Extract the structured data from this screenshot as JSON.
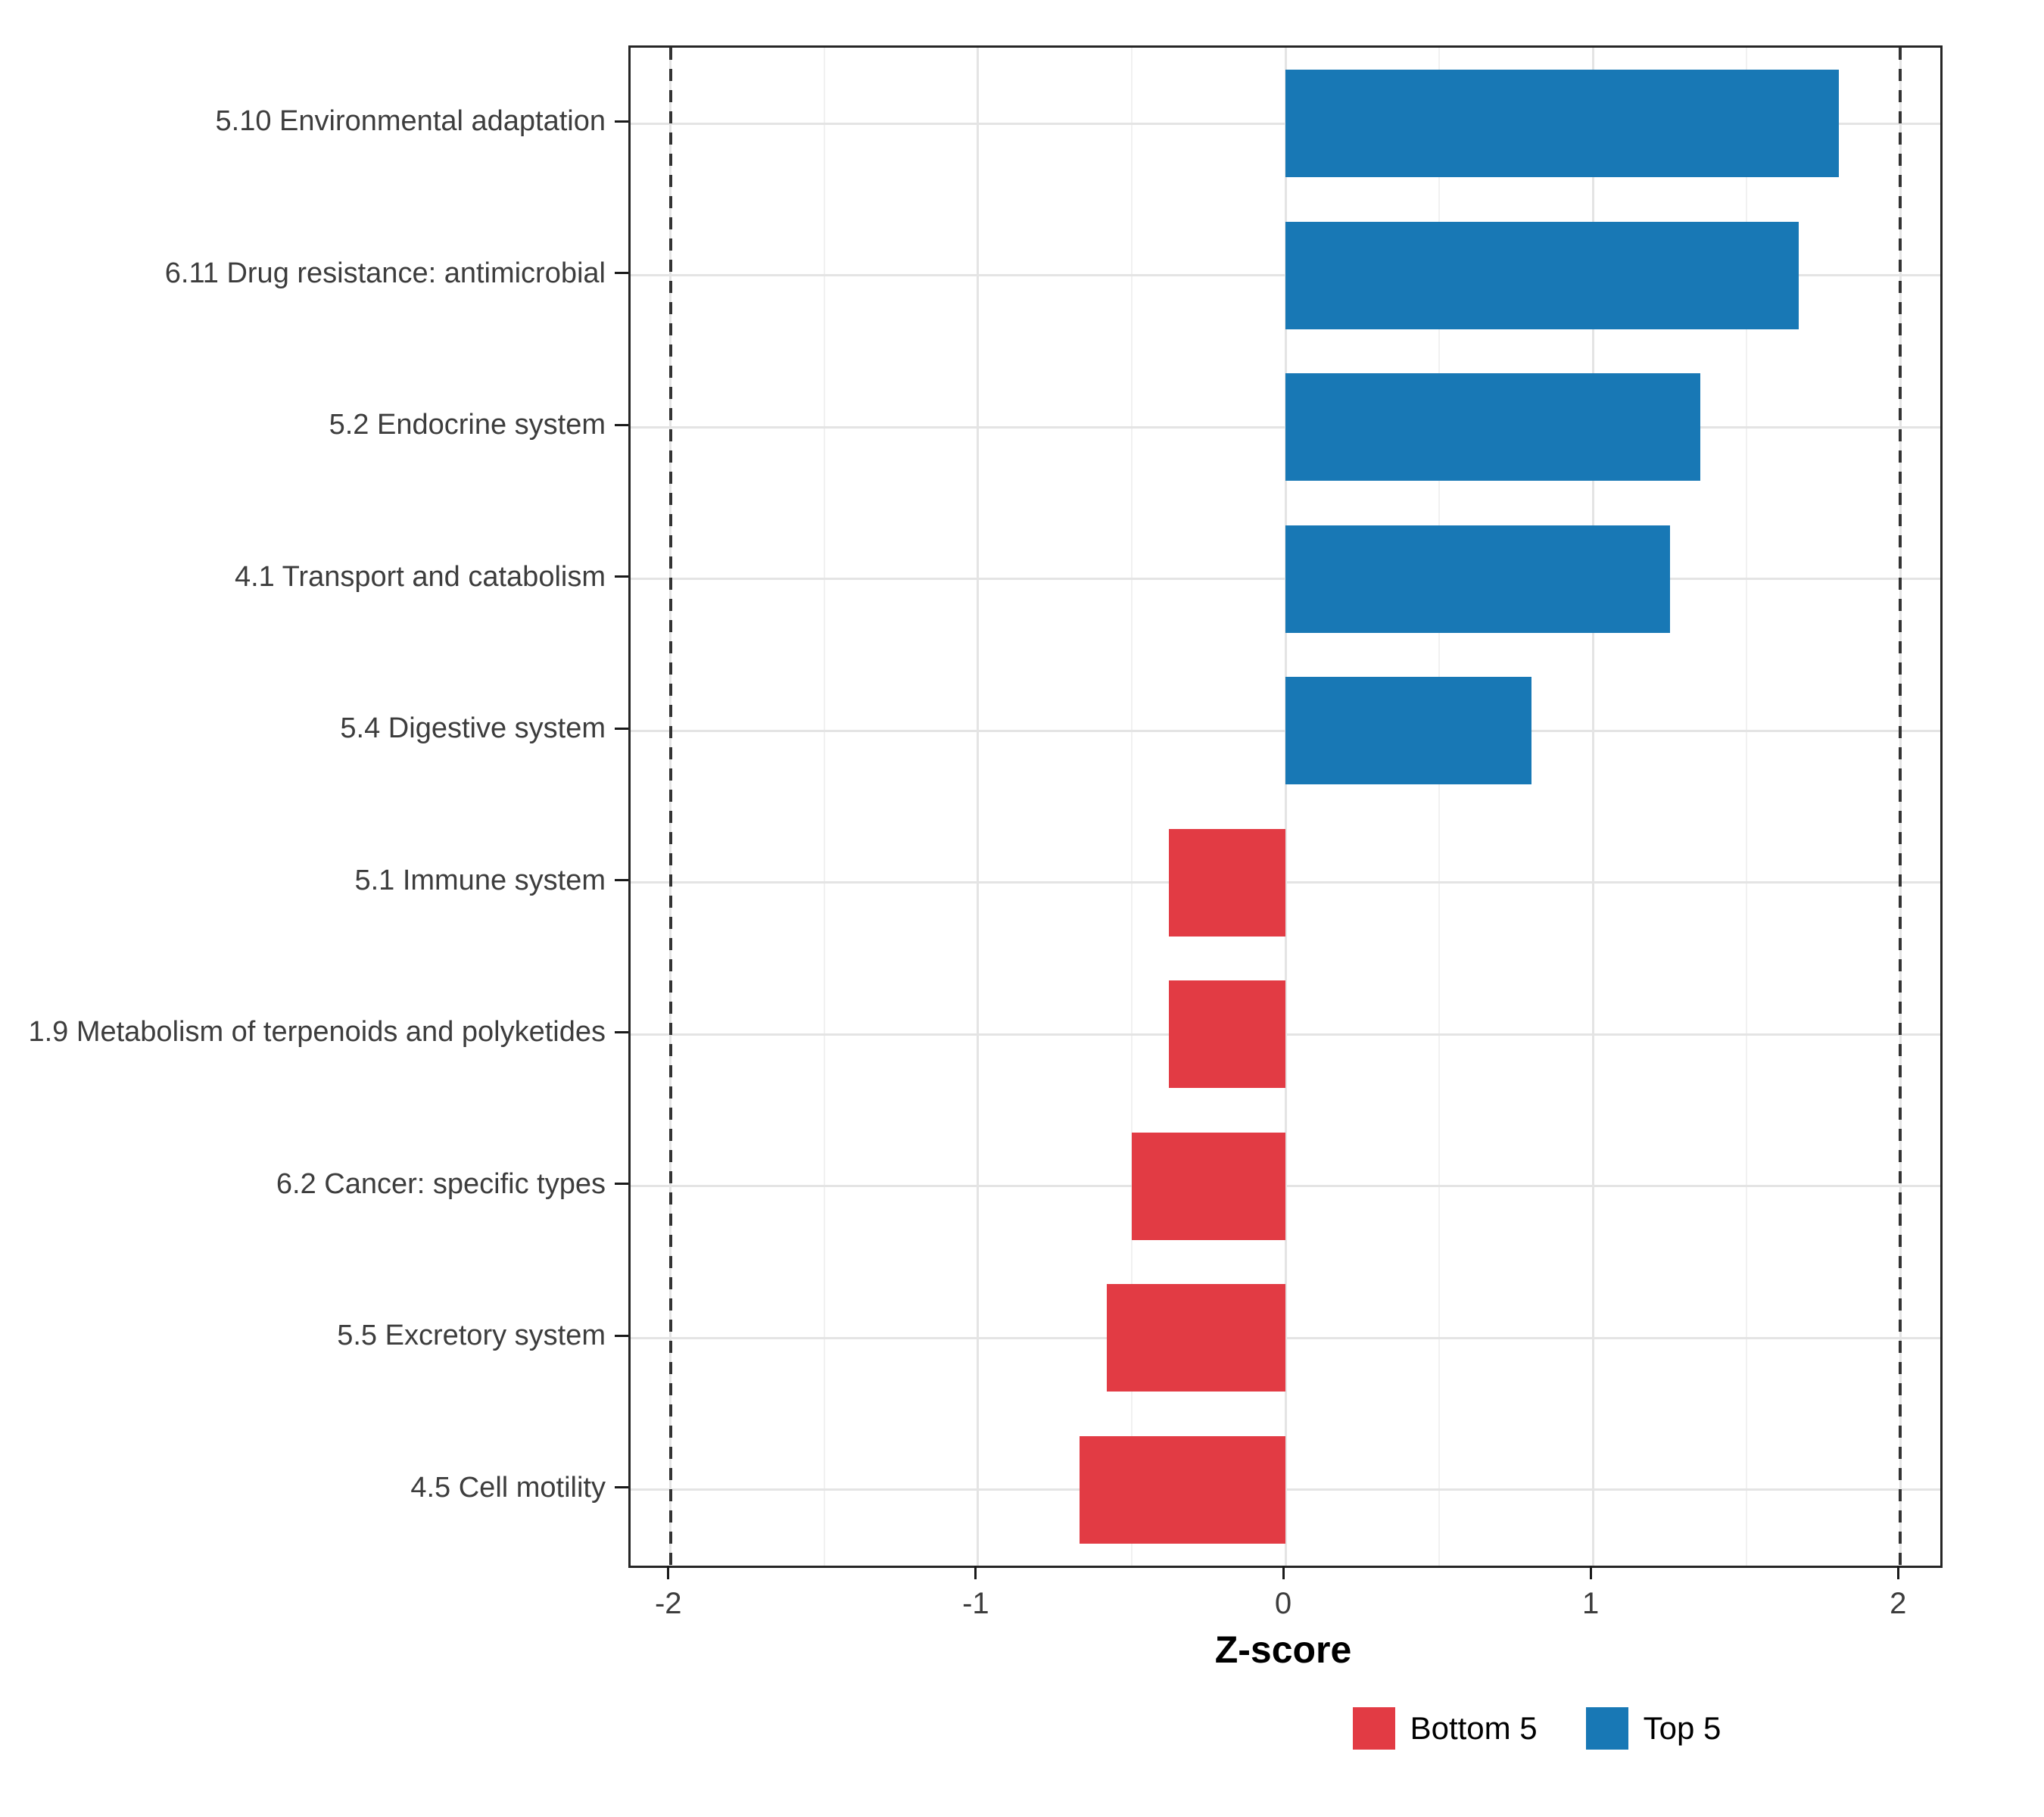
{
  "chart_data": {
    "type": "bar",
    "orientation": "horizontal",
    "title": "",
    "xlabel": "Z-score",
    "ylabel": "",
    "xlim": [
      -2.13,
      2.13
    ],
    "x_ticks": [
      {
        "value": -2,
        "label": "-2"
      },
      {
        "value": -1,
        "label": "-1"
      },
      {
        "value": 0,
        "label": "0"
      },
      {
        "value": 1,
        "label": "1"
      },
      {
        "value": 2,
        "label": "2"
      }
    ],
    "x_minor_ticks": [
      -1.5,
      -0.5,
      0.5,
      1.5
    ],
    "reference_lines": [
      {
        "value": -2,
        "style": "dashed"
      },
      {
        "value": 2,
        "style": "dashed"
      }
    ],
    "categories": [
      "5.10 Environmental adaptation",
      "6.11 Drug resistance: antimicrobial",
      "5.2 Endocrine system",
      "4.1 Transport and catabolism",
      "5.4 Digestive system",
      "5.1 Immune system",
      "1.9 Metabolism of terpenoids and polyketides",
      "6.2 Cancer: specific types",
      "5.5 Excretory system",
      "4.5 Cell motility"
    ],
    "values": [
      1.8,
      1.67,
      1.35,
      1.25,
      0.8,
      -0.38,
      -0.38,
      -0.5,
      -0.58,
      -0.67
    ],
    "groups": [
      "Top 5",
      "Top 5",
      "Top 5",
      "Top 5",
      "Top 5",
      "Bottom 5",
      "Bottom 5",
      "Bottom 5",
      "Bottom 5",
      "Bottom 5"
    ],
    "legend": {
      "position": "bottom",
      "items": [
        {
          "label": "Bottom 5",
          "color": "#E23B44"
        },
        {
          "label": "Top 5",
          "color": "#1878B5"
        }
      ]
    },
    "grid": true
  },
  "colors": {
    "background": "#FFFFFF",
    "panel_border": "#262626",
    "grid_major": "#E4E4E4",
    "grid_minor": "#F1F1F1",
    "axis_text": "#3D3D3D",
    "axis_title": "#000000",
    "tick_mark": "#1A1A1A",
    "ref_line": "#333333"
  }
}
